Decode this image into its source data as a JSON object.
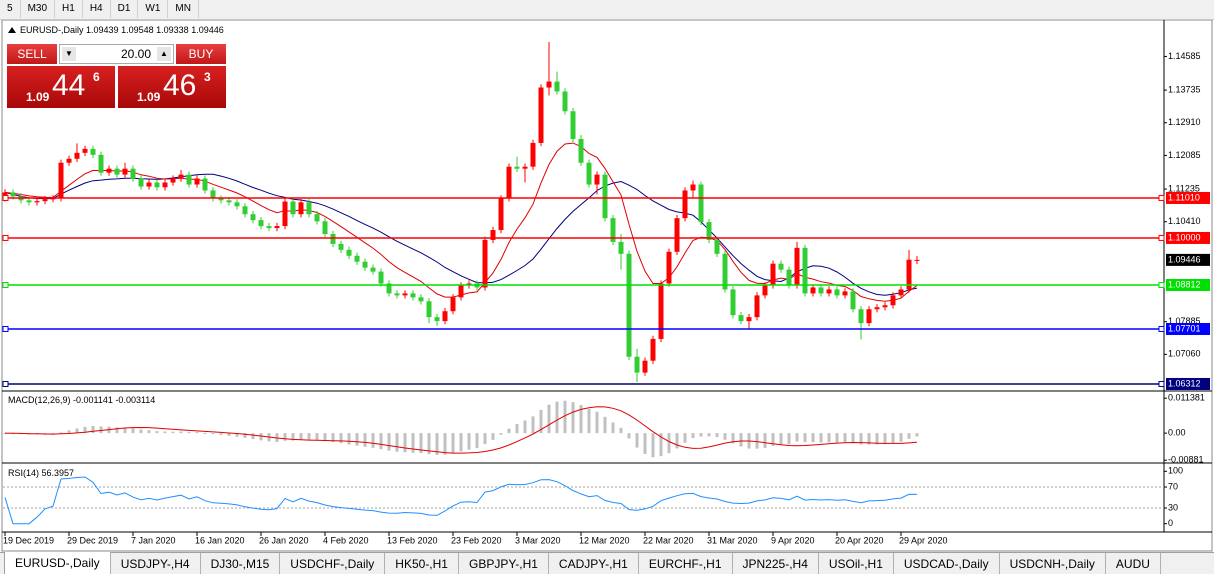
{
  "toolbar": {
    "timeframes": [
      "5",
      "M30",
      "H1",
      "H4",
      "D1",
      "W1",
      "MN"
    ]
  },
  "trade_panel": {
    "sell": "SELL",
    "buy": "BUY",
    "lot": "20.00",
    "sell_price": {
      "big": "1.09",
      "pips": "44",
      "point": "6"
    },
    "buy_price": {
      "big": "1.09",
      "pips": "46",
      "point": "3"
    }
  },
  "chart_data": {
    "type": "candlestick",
    "symbol": "EURUSD-,Daily",
    "categories": [
      "19 Dec 2019",
      null,
      null,
      null,
      null,
      null,
      null,
      null,
      "29 Dec 2019",
      null,
      null,
      null,
      null,
      null,
      null,
      null,
      "7 Jan 2020",
      null,
      null,
      null,
      null,
      null,
      null,
      null,
      "16 Jan 2020",
      null,
      null,
      null,
      null,
      null,
      null,
      null,
      "26 Jan 2020",
      null,
      null,
      null,
      null,
      null,
      null,
      null,
      "4 Feb 2020",
      null,
      null,
      null,
      null,
      null,
      null,
      null,
      "13 Feb 2020",
      null,
      null,
      null,
      null,
      null,
      null,
      null,
      "23 Feb 2020",
      null,
      null,
      null,
      null,
      null,
      null,
      null,
      "3 Mar 2020",
      null,
      null,
      null,
      null,
      null,
      null,
      null,
      "12 Mar 2020",
      null,
      null,
      null,
      null,
      null,
      null,
      null,
      "22 Mar 2020",
      null,
      null,
      null,
      null,
      null,
      null,
      null,
      "31 Mar 2020",
      null,
      null,
      null,
      null,
      null,
      null,
      null,
      "9 Apr 2020",
      null,
      null,
      null,
      null,
      null,
      null,
      null,
      "20 Apr 2020",
      null,
      null,
      null,
      null,
      null,
      null,
      null,
      "29 Apr 2020",
      null,
      null
    ],
    "candles": [
      [
        1.11,
        1.1123,
        1.1092,
        1.1115
      ],
      [
        1.1115,
        1.1123,
        1.1097,
        1.1105
      ],
      [
        1.1105,
        1.1113,
        1.1087,
        1.1095
      ],
      [
        1.1095,
        1.1103,
        1.1082,
        1.109
      ],
      [
        1.109,
        1.1101,
        1.1082,
        1.1093
      ],
      [
        1.1093,
        1.1106,
        1.1085,
        1.1098
      ],
      [
        1.1098,
        1.1108,
        1.109,
        1.11
      ],
      [
        1.11,
        1.1198,
        1.1092,
        1.119
      ],
      [
        1.119,
        1.1208,
        1.1182,
        1.12
      ],
      [
        1.12,
        1.1239,
        1.1192,
        1.1215
      ],
      [
        1.1215,
        1.1233,
        1.1207,
        1.1225
      ],
      [
        1.1225,
        1.1233,
        1.1202,
        1.121
      ],
      [
        1.121,
        1.1218,
        1.1157,
        1.1165
      ],
      [
        1.1165,
        1.1183,
        1.1157,
        1.1175
      ],
      [
        1.1175,
        1.1183,
        1.1152,
        1.116
      ],
      [
        1.116,
        1.119,
        1.1152,
        1.1175
      ],
      [
        1.1175,
        1.1183,
        1.1142,
        1.115
      ],
      [
        1.115,
        1.1158,
        1.1122,
        1.113
      ],
      [
        1.113,
        1.1148,
        1.1122,
        1.114
      ],
      [
        1.114,
        1.1148,
        1.112,
        1.1128
      ],
      [
        1.1128,
        1.1148,
        1.112,
        1.114
      ],
      [
        1.114,
        1.1158,
        1.1132,
        1.115
      ],
      [
        1.115,
        1.1172,
        1.1142,
        1.116
      ],
      [
        1.116,
        1.1168,
        1.1127,
        1.1135
      ],
      [
        1.1135,
        1.1158,
        1.1127,
        1.115
      ],
      [
        1.115,
        1.1158,
        1.1112,
        1.112
      ],
      [
        1.112,
        1.1128,
        1.1092,
        1.11
      ],
      [
        1.11,
        1.1108,
        1.1087,
        1.1095
      ],
      [
        1.1095,
        1.1103,
        1.1082,
        1.109
      ],
      [
        1.109,
        1.1098,
        1.1072,
        1.108
      ],
      [
        1.108,
        1.1088,
        1.1052,
        1.106
      ],
      [
        1.106,
        1.1068,
        1.1037,
        1.1045
      ],
      [
        1.1045,
        1.1053,
        1.1022,
        1.103
      ],
      [
        1.103,
        1.1038,
        1.1017,
        1.1025
      ],
      [
        1.1025,
        1.1038,
        1.1017,
        1.103
      ],
      [
        1.103,
        1.11,
        1.1022,
        1.1092
      ],
      [
        1.1092,
        1.11,
        1.1052,
        1.106
      ],
      [
        1.106,
        1.1098,
        1.1052,
        1.109
      ],
      [
        1.109,
        1.1098,
        1.1052,
        1.106
      ],
      [
        1.106,
        1.1068,
        1.1034,
        1.1042
      ],
      [
        1.1042,
        1.105,
        1.1002,
        1.101
      ],
      [
        1.101,
        1.1018,
        1.0977,
        1.0985
      ],
      [
        1.0985,
        1.0993,
        1.0962,
        1.097
      ],
      [
        1.097,
        1.0978,
        1.0947,
        1.0955
      ],
      [
        1.0955,
        1.0963,
        1.0932,
        1.094
      ],
      [
        1.094,
        1.0948,
        1.0917,
        1.0925
      ],
      [
        1.0925,
        1.0933,
        1.0907,
        1.0915
      ],
      [
        1.0915,
        1.0923,
        1.0877,
        1.0885
      ],
      [
        1.0885,
        1.0893,
        1.0852,
        1.086
      ],
      [
        1.086,
        1.0868,
        1.0847,
        1.0855
      ],
      [
        1.0855,
        1.0868,
        1.0847,
        1.086
      ],
      [
        1.086,
        1.0868,
        1.0842,
        1.085
      ],
      [
        1.085,
        1.0858,
        1.0832,
        1.084
      ],
      [
        1.084,
        1.0848,
        1.0785,
        1.08
      ],
      [
        1.08,
        1.0808,
        1.0778,
        1.079
      ],
      [
        1.079,
        1.0823,
        1.0782,
        1.0815
      ],
      [
        1.0815,
        1.0858,
        1.0807,
        1.085
      ],
      [
        1.085,
        1.0888,
        1.0842,
        1.088
      ],
      [
        1.088,
        1.0893,
        1.0872,
        1.0885
      ],
      [
        1.0885,
        1.0893,
        1.0867,
        1.0875
      ],
      [
        1.0875,
        1.1003,
        1.0867,
        1.0995
      ],
      [
        1.0995,
        1.1028,
        1.0987,
        1.102
      ],
      [
        1.102,
        1.1108,
        1.1012,
        1.11
      ],
      [
        1.11,
        1.1188,
        1.1092,
        1.118
      ],
      [
        1.118,
        1.1205,
        1.1167,
        1.1175
      ],
      [
        1.1175,
        1.1188,
        1.114,
        1.118
      ],
      [
        1.118,
        1.1248,
        1.1172,
        1.124
      ],
      [
        1.124,
        1.1388,
        1.1232,
        1.138
      ],
      [
        1.138,
        1.1495,
        1.136,
        1.1395
      ],
      [
        1.1395,
        1.142,
        1.1362,
        1.137
      ],
      [
        1.137,
        1.1378,
        1.1312,
        1.132
      ],
      [
        1.132,
        1.1328,
        1.1242,
        1.125
      ],
      [
        1.125,
        1.126,
        1.1182,
        1.119
      ],
      [
        1.119,
        1.1198,
        1.1127,
        1.1135
      ],
      [
        1.1135,
        1.1168,
        1.111,
        1.116
      ],
      [
        1.116,
        1.1168,
        1.1042,
        1.105
      ],
      [
        1.105,
        1.1058,
        1.0982,
        1.099
      ],
      [
        1.099,
        1.101,
        1.092,
        1.096
      ],
      [
        1.096,
        1.0968,
        1.0692,
        1.07
      ],
      [
        1.07,
        1.072,
        1.0636,
        1.066
      ],
      [
        1.066,
        1.0698,
        1.0652,
        1.069
      ],
      [
        1.069,
        1.0753,
        1.0682,
        1.0745
      ],
      [
        1.0745,
        1.0893,
        1.0737,
        1.0885
      ],
      [
        1.0885,
        1.0973,
        1.0877,
        1.0965
      ],
      [
        1.0965,
        1.1058,
        1.0957,
        1.105
      ],
      [
        1.105,
        1.1128,
        1.1042,
        1.112
      ],
      [
        1.112,
        1.1145,
        1.11,
        1.1135
      ],
      [
        1.1135,
        1.1143,
        1.1032,
        1.104
      ],
      [
        1.104,
        1.1048,
        1.0987,
        1.0995
      ],
      [
        1.0995,
        1.1003,
        1.0952,
        1.096
      ],
      [
        1.096,
        1.0968,
        1.0862,
        1.087
      ],
      [
        1.087,
        1.0878,
        1.0797,
        1.0805
      ],
      [
        1.0805,
        1.0813,
        1.0782,
        1.079
      ],
      [
        1.079,
        1.0808,
        1.077,
        1.08
      ],
      [
        1.08,
        1.0863,
        1.0792,
        1.0855
      ],
      [
        1.0855,
        1.0888,
        1.0847,
        1.088
      ],
      [
        1.088,
        1.0943,
        1.0872,
        1.0935
      ],
      [
        1.0935,
        1.0943,
        1.0912,
        1.092
      ],
      [
        1.092,
        1.0928,
        1.0872,
        1.088
      ],
      [
        1.088,
        1.099,
        1.0872,
        1.0975
      ],
      [
        1.0975,
        1.0983,
        1.0852,
        1.086
      ],
      [
        1.086,
        1.0883,
        1.0852,
        1.0875
      ],
      [
        1.0875,
        1.0883,
        1.0852,
        1.086
      ],
      [
        1.086,
        1.0878,
        1.0852,
        1.087
      ],
      [
        1.087,
        1.0878,
        1.0847,
        1.0855
      ],
      [
        1.0855,
        1.0873,
        1.0847,
        1.0865
      ],
      [
        1.0865,
        1.0873,
        1.0812,
        1.082
      ],
      [
        1.082,
        1.0828,
        1.0744,
        1.0785
      ],
      [
        1.0785,
        1.0828,
        1.0777,
        1.082
      ],
      [
        1.082,
        1.0833,
        1.0812,
        1.0825
      ],
      [
        1.0825,
        1.0838,
        1.0817,
        1.083
      ],
      [
        1.083,
        1.0863,
        1.0822,
        1.0855
      ],
      [
        1.0855,
        1.0878,
        1.0847,
        1.087
      ],
      [
        1.087,
        1.097,
        1.0862,
        1.0945
      ],
      [
        1.09439,
        1.09548,
        1.09338,
        1.09446
      ]
    ],
    "ylim": [
      1.0616,
      1.1548
    ],
    "yticks": [
      1.14585,
      1.13735,
      {
        "value": 1.1291,
        "label": "1.12910"
      },
      1.12085,
      1.11235,
      {
        "value": 1.1041,
        "label": "1.10410"
      },
      1.07885,
      {
        "value": 1.0706,
        "label": "1.07060"
      }
    ],
    "levels": [
      {
        "value": 1.1101,
        "label": "1.11010",
        "color": "#ff0000"
      },
      {
        "value": 1.1,
        "label": "1.10000",
        "color": "#ff0000"
      },
      {
        "value": 1.08812,
        "color": "#00e000"
      },
      {
        "value": 1.07701,
        "color": "#0000ff"
      },
      {
        "value": 1.06312,
        "color": "#000080"
      }
    ],
    "bull_color": "#ff0000",
    "bear_color": "#32cd32",
    "macd": {
      "label": "MACD(12,26,9)",
      "main": -0.001141,
      "signal": -0.003114,
      "ylim": [
        -0.0094,
        0.0134
      ],
      "yticks": [
        0.011381,
        {
          "value": 0,
          "label": "0.00"
        },
        -0.00881
      ]
    },
    "rsi": {
      "label": "RSI(14)",
      "value": 56.3957,
      "ylim": [
        -14,
        114
      ],
      "yticks": [
        100,
        70,
        30,
        0
      ]
    }
  },
  "tabs": [
    "EURUSD-,Daily",
    "USDJPY-,H4",
    "DJ30-,M15",
    "USDCHF-,Daily",
    "HK50-,H1",
    "GBPJPY-,H1",
    "CADJPY-,H1",
    "EURCHF-,H1",
    "JPN225-,H4",
    "USOil-,H1",
    "USDCAD-,Daily",
    "USDCNH-,Daily",
    "AUDU"
  ]
}
